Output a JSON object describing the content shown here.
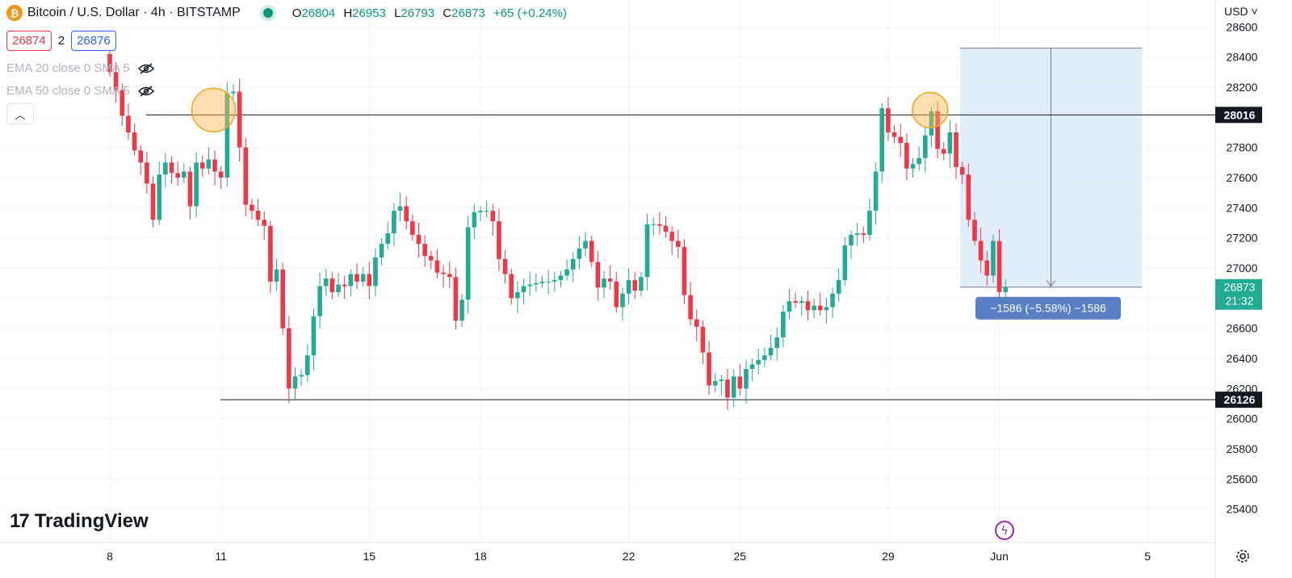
{
  "header": {
    "symbol_title": "Bitcoin / U.S. Dollar · 4h · BITSTAMP",
    "ohlc": {
      "o_label": "O",
      "o": "26804",
      "h_label": "H",
      "h": "26953",
      "l_label": "L",
      "l": "26793",
      "c_label": "C",
      "c": "26873",
      "change": "+65 (+0.24%)"
    },
    "bid": "26874",
    "spread": "2",
    "ask": "26876"
  },
  "indicators": [
    {
      "label": "EMA 20 close 0 SMA 5"
    },
    {
      "label": "EMA 50 close 0 SMA 5"
    }
  ],
  "currency_label": "USD",
  "logo_text": "TradingView",
  "chart_data": {
    "type": "candlestick",
    "symbol": "BTCUSD",
    "timeframe": "4h",
    "exchange": "BITSTAMP",
    "ylim": [
      25200,
      28800
    ],
    "y_ticks": [
      25400,
      25600,
      25800,
      26000,
      26200,
      26400,
      26600,
      26800,
      27000,
      27200,
      27400,
      27600,
      27800,
      28000,
      28200,
      28400,
      28600
    ],
    "x_ticks": [
      {
        "label": "8",
        "bar": 0
      },
      {
        "label": "11",
        "bar": 18
      },
      {
        "label": "15",
        "bar": 42
      },
      {
        "label": "18",
        "bar": 60
      },
      {
        "label": "22",
        "bar": 84
      },
      {
        "label": "25",
        "bar": 102
      },
      {
        "label": "29",
        "bar": 126
      },
      {
        "label": "Jun",
        "bar": 144
      },
      {
        "label": "5",
        "bar": 168
      }
    ],
    "bar_count_visible": 190,
    "levels": [
      {
        "name": "resistance",
        "price": 28016,
        "label": "28016"
      },
      {
        "name": "support",
        "price": 26126,
        "label": "26126"
      }
    ],
    "last_price": {
      "label": "26873",
      "countdown": "21:32",
      "price": 26873
    },
    "measure": {
      "from_price": 28459,
      "to_price": 26873,
      "from_bar": 137,
      "to_bar": 166,
      "label": "−1586 (−5.58%) −1586"
    },
    "highlights": [
      {
        "bar": 16,
        "price": 28016
      },
      {
        "bar": 132,
        "price": 28016
      }
    ],
    "colors": {
      "up": "#22ab94",
      "down": "#f23645",
      "resistance": "#131722",
      "measure_fill": "#dbe9fb",
      "highlight": "#ffb74d"
    },
    "closes": [
      28300,
      28180,
      28010,
      27900,
      27780,
      27700,
      27560,
      27320,
      27620,
      27700,
      27630,
      27600,
      27640,
      27410,
      27700,
      27660,
      27720,
      27640,
      27600,
      28160,
      28170,
      27800,
      27420,
      27380,
      27320,
      27280,
      26910,
      26990,
      26600,
      26200,
      26280,
      26290,
      26420,
      26680,
      26880,
      26930,
      26840,
      26890,
      26880,
      26960,
      26910,
      26960,
      26880,
      27070,
      27160,
      27230,
      27380,
      27410,
      27310,
      27220,
      27160,
      27080,
      27050,
      26970,
      26960,
      26940,
      26650,
      26790,
      27270,
      27370,
      27380,
      27380,
      27310,
      27060,
      26960,
      26800,
      26840,
      26880,
      26890,
      26900,
      26910,
      26910,
      26920,
      26950,
      26990,
      27060,
      27130,
      27180,
      27040,
      26870,
      26930,
      26910,
      26740,
      26830,
      26920,
      26850,
      26940,
      27290,
      27290,
      27280,
      27240,
      27180,
      27140,
      26820,
      26660,
      26610,
      26440,
      26220,
      26250,
      26260,
      26140,
      26280,
      26200,
      26330,
      26360,
      26390,
      26420,
      26470,
      26540,
      26710,
      26780,
      26770,
      26780,
      26720,
      26750,
      26720,
      26740,
      26830,
      26920,
      27150,
      27220,
      27230,
      27220,
      27380,
      27640,
      28060,
      27900,
      27870,
      27830,
      27660,
      27690,
      27730,
      27880,
      28040,
      27790,
      27760,
      27900,
      27670,
      27620,
      27320,
      27180,
      27050,
      26950,
      27180,
      26840,
      26873
    ]
  }
}
